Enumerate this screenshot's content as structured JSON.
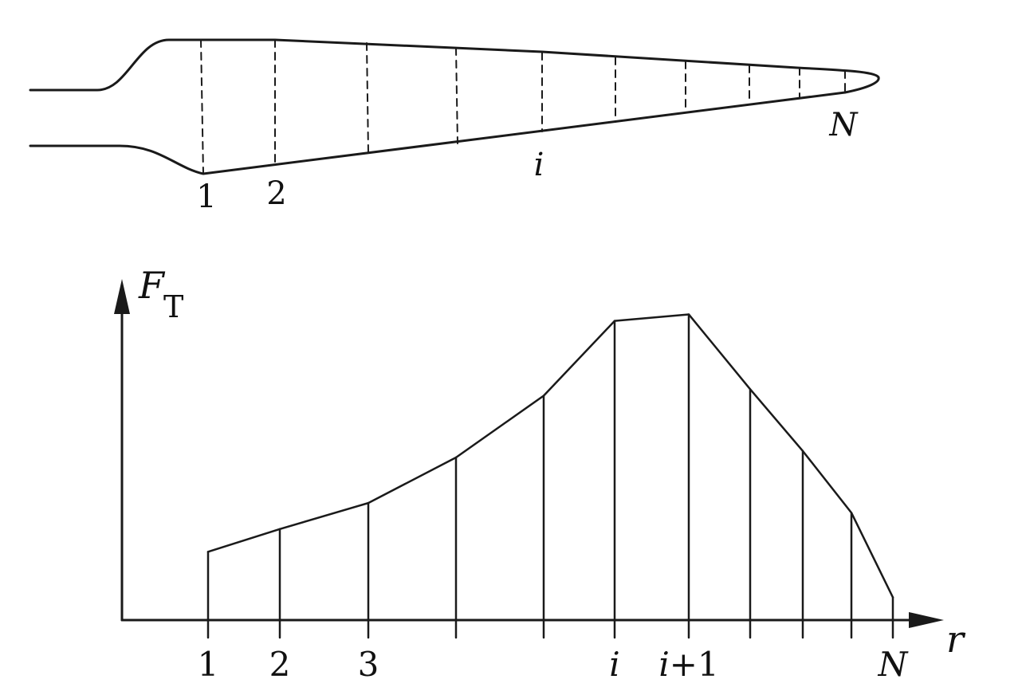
{
  "blade": {
    "labels": {
      "station_1": "1",
      "station_2": "2",
      "station_i": "i",
      "station_N": "N"
    }
  },
  "chart_data": {
    "type": "line",
    "xlabel": "r",
    "ylabel_symbol": "F",
    "ylabel_subscript": "T",
    "tick_labels": [
      "1",
      "2",
      "3",
      "",
      "",
      "i",
      "i+1",
      "",
      "",
      "",
      "N"
    ],
    "x": [
      1,
      2,
      3,
      4,
      5,
      6,
      7,
      8,
      9,
      10,
      11
    ],
    "values": [
      0.21,
      0.28,
      0.36,
      0.5,
      0.69,
      0.92,
      0.94,
      0.71,
      0.52,
      0.33,
      0.07
    ],
    "ylim": [
      0,
      1
    ],
    "grid": false,
    "legend": "none",
    "stem_lines": true
  }
}
